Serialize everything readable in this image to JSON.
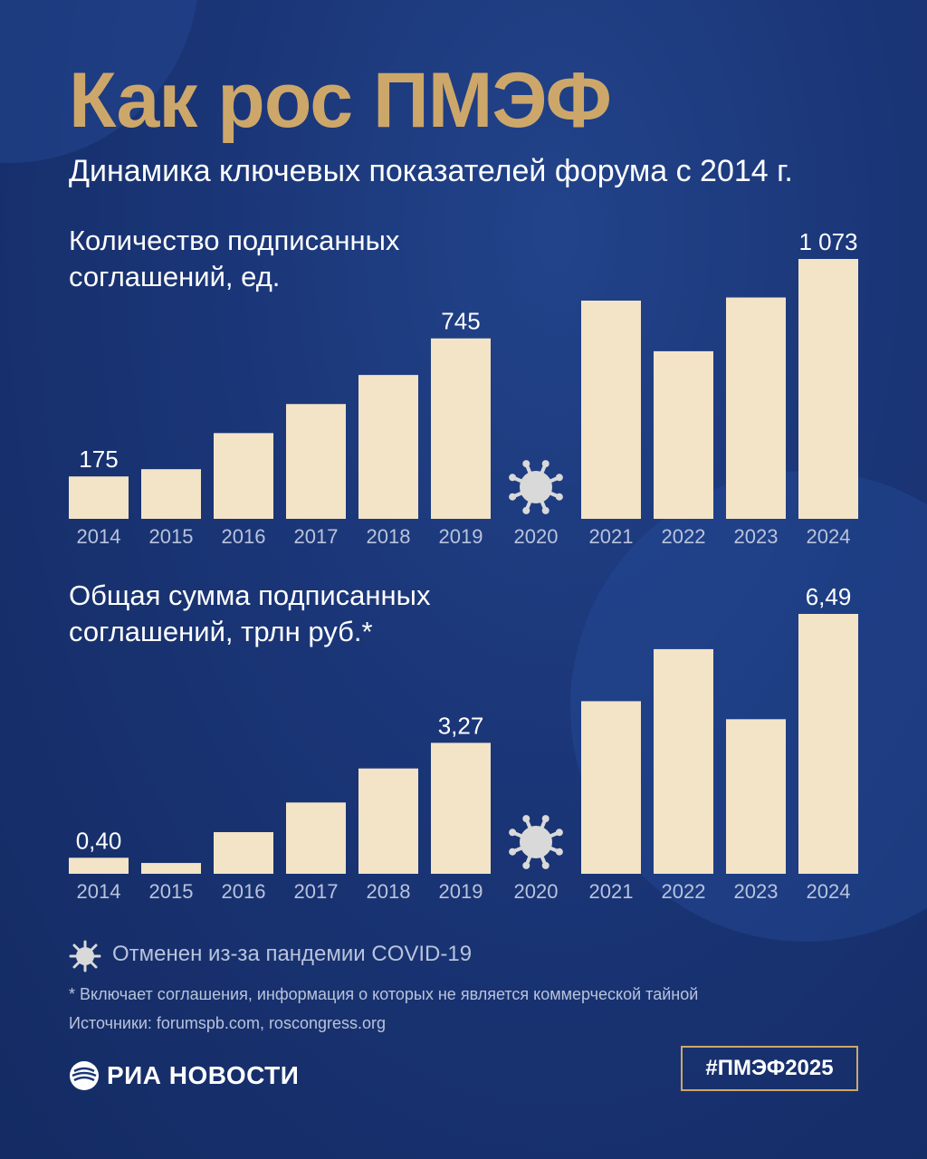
{
  "header": {
    "title": "Как рос ПМЭФ",
    "subtitle": "Динамика ключевых показателей форума с 2014 г."
  },
  "colors": {
    "background": "#1a3576",
    "bar": "#f3e4c8",
    "accent": "#cda76a",
    "muted": "#b9c3dc",
    "virus_icon": "#d9d9d9"
  },
  "chart_data": [
    {
      "type": "bar",
      "title": "Количество подписанных соглашений, ед.",
      "categories": [
        "2014",
        "2015",
        "2016",
        "2017",
        "2018",
        "2019",
        "2020",
        "2021",
        "2022",
        "2023",
        "2024"
      ],
      "values": [
        175,
        205,
        354,
        474,
        594,
        745,
        null,
        901,
        692,
        914,
        1073
      ],
      "data_labels": [
        "175",
        "",
        "",
        "",
        "",
        "745",
        "",
        "",
        "",
        "",
        "1 073"
      ],
      "ylim": [
        0,
        1073
      ],
      "missing_marker": {
        "category": "2020",
        "icon": "virus-icon"
      }
    },
    {
      "type": "bar",
      "title": "Общая сумма подписанных соглашений, трлн руб.*",
      "categories": [
        "2014",
        "2015",
        "2016",
        "2017",
        "2018",
        "2019",
        "2020",
        "2021",
        "2022",
        "2023",
        "2024"
      ],
      "values": [
        0.4,
        0.27,
        1.04,
        1.78,
        2.63,
        3.27,
        null,
        4.31,
        5.61,
        3.86,
        6.49
      ],
      "data_labels": [
        "0,40",
        "",
        "",
        "",
        "",
        "3,27",
        "",
        "",
        "",
        "",
        "6,49"
      ],
      "ylim": [
        0,
        6.49
      ],
      "missing_marker": {
        "category": "2020",
        "icon": "virus-icon"
      }
    }
  ],
  "legend": {
    "icon": "virus-icon",
    "text": "Отменен из-за пандемии COVID-19"
  },
  "footnote": "* Включает соглашения, информация о которых не является коммерческой тайной",
  "sources": "Источники: forumspb.com, roscongress.org",
  "brand": {
    "logo_text": "РИА НОВОСТИ",
    "hashtag": "#ПМЭФ2025"
  }
}
